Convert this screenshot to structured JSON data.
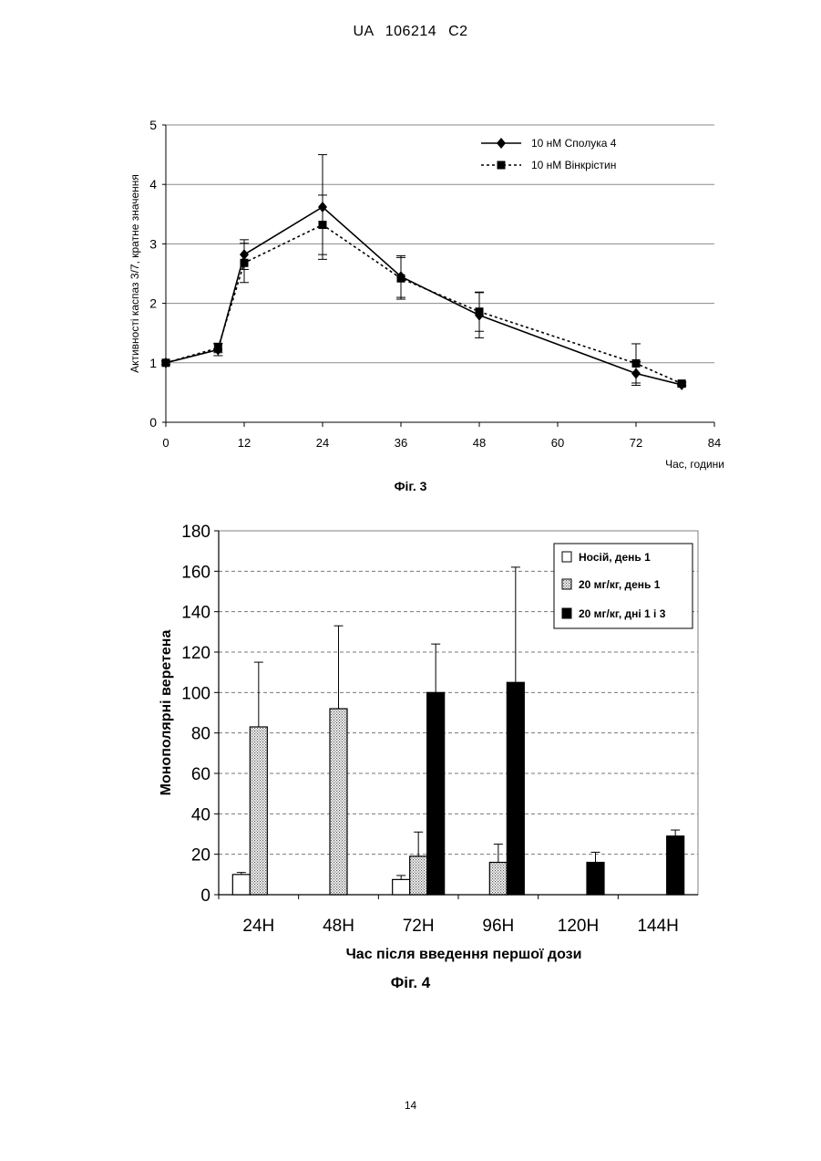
{
  "header": {
    "doc_id": "UA   106214   C2"
  },
  "figures": [
    {
      "caption": "Фіг. 3"
    },
    {
      "caption": "Фіг. 4"
    }
  ],
  "page_number": "14",
  "chart_data": [
    {
      "type": "line",
      "title": "",
      "ylabel": "Активності каспаз 3/7, кратне значення",
      "xlabel": "Час,  години",
      "xlim": [
        0,
        84
      ],
      "ylim": [
        0,
        5
      ],
      "xticks": [
        0,
        12,
        24,
        36,
        48,
        60,
        72,
        84
      ],
      "xtick_labels": [
        "0",
        "12",
        "24",
        "36",
        "48",
        "60",
        "72",
        "84"
      ],
      "yticks": [
        0,
        1,
        2,
        3,
        4,
        5
      ],
      "ytick_labels": [
        "0",
        "1",
        "2",
        "3",
        "4",
        "5"
      ],
      "grid": "horizontal",
      "legend_position": "top-right",
      "series": [
        {
          "name": "10 нМ Сполука 4",
          "style": "solid",
          "marker": "diamond",
          "x": [
            0,
            8,
            12,
            24,
            36,
            48,
            72,
            79
          ],
          "y": [
            1.0,
            1.22,
            2.82,
            3.62,
            2.45,
            1.8,
            0.82,
            0.63
          ],
          "err": [
            0.03,
            0.1,
            0.25,
            0.88,
            0.35,
            0.38,
            0.2,
            0.03
          ]
        },
        {
          "name": "10 нМ Вінкрістин",
          "style": "dotted",
          "marker": "square",
          "x": [
            0,
            8,
            12,
            24,
            36,
            48,
            72,
            79
          ],
          "y": [
            1.0,
            1.25,
            2.68,
            3.32,
            2.42,
            1.86,
            0.99,
            0.65
          ],
          "err": [
            0.03,
            0.08,
            0.33,
            0.5,
            0.35,
            0.33,
            0.33,
            0.03
          ]
        }
      ]
    },
    {
      "type": "bar",
      "title": "",
      "ylabel": "Монополярні веретена",
      "xlabel": "Час після введення першої дози",
      "categories": [
        "24H",
        "48H",
        "72H",
        "96H",
        "120H",
        "144H"
      ],
      "ylim": [
        0,
        180
      ],
      "yticks": [
        0,
        20,
        40,
        60,
        80,
        100,
        120,
        140,
        160,
        180
      ],
      "ytick_labels": [
        "0",
        "20",
        "40",
        "60",
        "80",
        "100",
        "120",
        "140",
        "160",
        "180"
      ],
      "grid": "horizontal-dashed",
      "legend_position": "top-right",
      "series": [
        {
          "name": "Носій, день 1",
          "fill": "white",
          "values": [
            10,
            null,
            7.5,
            null,
            null,
            null
          ],
          "err": [
            1,
            null,
            2,
            null,
            null,
            null
          ]
        },
        {
          "name": "20 мг/кг, день 1",
          "fill": "dotted",
          "values": [
            83,
            92,
            19,
            16,
            null,
            null
          ],
          "err": [
            32,
            41,
            12,
            9,
            null,
            null
          ]
        },
        {
          "name": "20 мг/кг, дні 1 і 3",
          "fill": "black",
          "values": [
            null,
            null,
            100,
            105,
            16,
            29
          ],
          "err": [
            null,
            null,
            24,
            57,
            5,
            3
          ]
        }
      ]
    }
  ]
}
